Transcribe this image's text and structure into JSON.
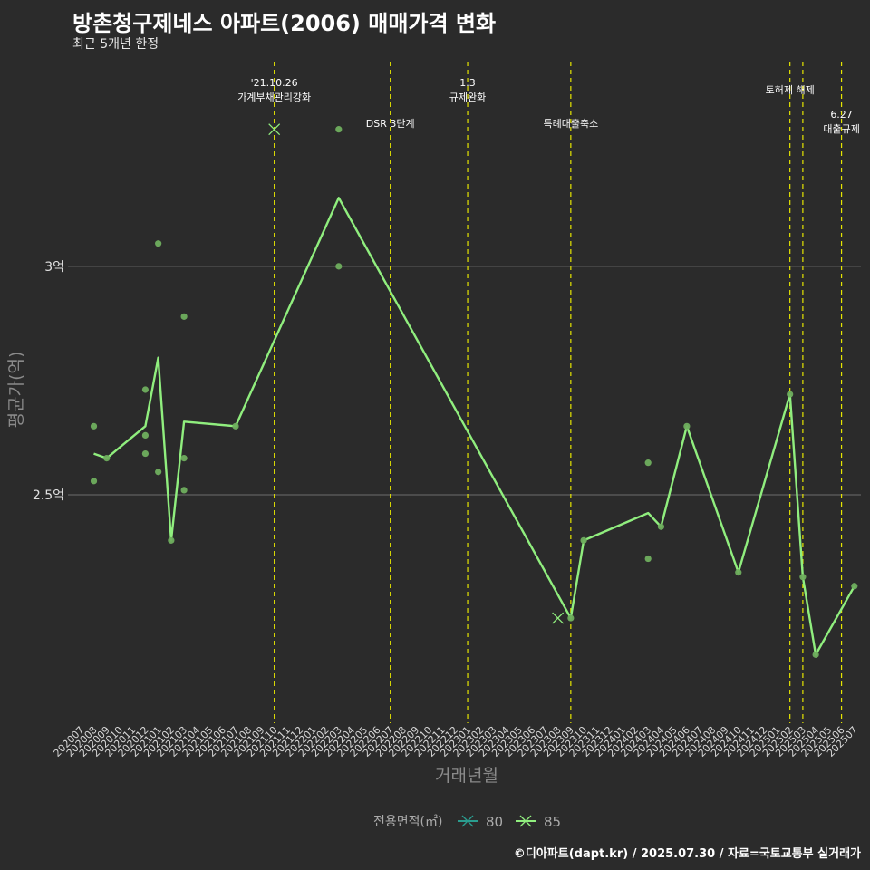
{
  "header": {
    "title": "방촌청구제네스 아파트(2006) 매매가격 변화",
    "subtitle": "최근 5개년 한정"
  },
  "caption": "©디아파트(dapt.kr) / 2025.07.30 / 자료=국토교통부 실거래가",
  "chart_data": {
    "type": "line",
    "xlabel": "거래년월",
    "ylabel": "평균가(억)",
    "ylim": [
      2.0,
      3.46
    ],
    "categories": [
      "202007",
      "202008",
      "202009",
      "202010",
      "202011",
      "202012",
      "202101",
      "202102",
      "202103",
      "202104",
      "202105",
      "202106",
      "202107",
      "202108",
      "202109",
      "202110",
      "202111",
      "202112",
      "202201",
      "202202",
      "202203",
      "202204",
      "202205",
      "202206",
      "202207",
      "202208",
      "202209",
      "202210",
      "202211",
      "202212",
      "202301",
      "202302",
      "202303",
      "202304",
      "202305",
      "202306",
      "202307",
      "202308",
      "202309",
      "202310",
      "202311",
      "202312",
      "202401",
      "202402",
      "202403",
      "202404",
      "202405",
      "202406",
      "202407",
      "202408",
      "202409",
      "202410",
      "202411",
      "202412",
      "202501",
      "202502",
      "202503",
      "202504",
      "202505",
      "202506",
      "202507"
    ],
    "y_ticks": [
      {
        "value": 2.5,
        "label": "2.5억"
      },
      {
        "value": 3.0,
        "label": "3억"
      }
    ],
    "grid": true,
    "legend": {
      "title": "전용면적(㎡)",
      "position": "bottom",
      "items": [
        {
          "name": "80",
          "color": "#2a9d8f"
        },
        {
          "name": "85",
          "color": "#90ee7e"
        }
      ]
    },
    "series": [
      {
        "name": "80",
        "color": "#2a9d8f",
        "line": [],
        "points": [],
        "x_marks": [
          {
            "x": "202110",
            "y": 3.3
          },
          {
            "x": "202308",
            "y": 2.23
          }
        ]
      },
      {
        "name": "85",
        "color": "#90ee7e",
        "line": [
          {
            "x": "202008",
            "y": 2.59
          },
          {
            "x": "202009",
            "y": 2.58
          },
          {
            "x": "202012",
            "y": 2.65
          },
          {
            "x": "202101",
            "y": 2.8
          },
          {
            "x": "202102",
            "y": 2.4
          },
          {
            "x": "202103",
            "y": 2.66
          },
          {
            "x": "202107",
            "y": 2.65
          },
          {
            "x": "202203",
            "y": 3.15
          },
          {
            "x": "202309",
            "y": 2.23
          },
          {
            "x": "202310",
            "y": 2.4
          },
          {
            "x": "202403",
            "y": 2.46
          },
          {
            "x": "202404",
            "y": 2.43
          },
          {
            "x": "202406",
            "y": 2.65
          },
          {
            "x": "202410",
            "y": 2.33
          },
          {
            "x": "202502",
            "y": 2.72
          },
          {
            "x": "202503",
            "y": 2.32
          },
          {
            "x": "202504",
            "y": 2.15
          },
          {
            "x": "202507",
            "y": 2.3
          }
        ],
        "points": [
          {
            "x": "202008",
            "y": 2.65
          },
          {
            "x": "202008",
            "y": 2.53
          },
          {
            "x": "202009",
            "y": 2.58
          },
          {
            "x": "202012",
            "y": 2.73
          },
          {
            "x": "202012",
            "y": 2.63
          },
          {
            "x": "202012",
            "y": 2.59
          },
          {
            "x": "202101",
            "y": 3.05
          },
          {
            "x": "202101",
            "y": 2.55
          },
          {
            "x": "202102",
            "y": 2.4
          },
          {
            "x": "202103",
            "y": 2.89
          },
          {
            "x": "202103",
            "y": 2.58
          },
          {
            "x": "202103",
            "y": 2.51
          },
          {
            "x": "202107",
            "y": 2.65
          },
          {
            "x": "202203",
            "y": 3.3
          },
          {
            "x": "202203",
            "y": 3.0
          },
          {
            "x": "202309",
            "y": 2.23
          },
          {
            "x": "202310",
            "y": 2.4
          },
          {
            "x": "202403",
            "y": 2.57
          },
          {
            "x": "202403",
            "y": 2.36
          },
          {
            "x": "202404",
            "y": 2.43
          },
          {
            "x": "202406",
            "y": 2.65
          },
          {
            "x": "202410",
            "y": 2.33
          },
          {
            "x": "202502",
            "y": 2.72
          },
          {
            "x": "202503",
            "y": 2.32
          },
          {
            "x": "202504",
            "y": 2.15
          },
          {
            "x": "202507",
            "y": 2.3
          }
        ],
        "x_marks": []
      }
    ],
    "events": [
      {
        "x": "202110",
        "labels": [
          "'21.10.26",
          "가계부채관리강화"
        ],
        "tier": "top"
      },
      {
        "x": "202207",
        "labels": [
          "DSR 3단계"
        ],
        "tier": "mid"
      },
      {
        "x": "202301",
        "labels": [
          "1.3",
          "규제완화"
        ],
        "tier": "top"
      },
      {
        "x": "202309",
        "labels": [
          "특례대출축소"
        ],
        "tier": "mid"
      },
      {
        "x": "202502",
        "labels": [
          "토허제 해제"
        ],
        "tier": "top"
      },
      {
        "x": "202503",
        "labels": [],
        "tier": "none"
      },
      {
        "x": "202506",
        "labels": [
          "6.27",
          "대출규제"
        ],
        "tier": "low"
      }
    ],
    "event_line_color": "#e6e600"
  }
}
